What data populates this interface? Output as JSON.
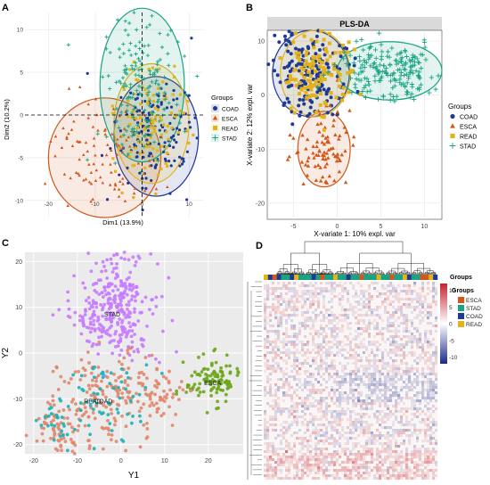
{
  "colors": {
    "COAD": "#1f3a93",
    "ESCA": "#d0581a",
    "READ": "#e3b31a",
    "STAD": "#1aa383",
    "tsne_purple": "#c77cff",
    "tsne_orange": "#e0876e",
    "tsne_green": "#6ca61a",
    "tsne_teal": "#1ab3b8",
    "heat_low": "#1b2a8c",
    "heat_mid": "#ffffff",
    "heat_high": "#c6242a"
  },
  "chart_data": [
    {
      "panel": "A",
      "type": "scatter",
      "xlabel": "Dim1 (13.9%)",
      "ylabel": "Dim2 (10.2%)",
      "xticks": [
        -20,
        -10,
        0,
        10
      ],
      "yticks": [
        10,
        5,
        0,
        -5,
        -10
      ],
      "xlim": [
        -25,
        13
      ],
      "ylim": [
        -12,
        12
      ],
      "grid": true,
      "legend": {
        "title": "Groups",
        "position": "right",
        "entries": [
          "COAD",
          "ESCA",
          "READ",
          "STAD"
        ]
      },
      "series": [
        {
          "name": "COAD",
          "center": [
            3,
            -2.5
          ],
          "spread": [
            4.5,
            3.5
          ],
          "count": 150
        },
        {
          "name": "ESCA",
          "center": [
            -8,
            -5
          ],
          "spread": [
            6,
            3.5
          ],
          "count": 110
        },
        {
          "name": "READ",
          "center": [
            2,
            -1
          ],
          "spread": [
            4,
            3.5
          ],
          "count": 110
        },
        {
          "name": "STAD",
          "center": [
            0,
            3.5
          ],
          "spread": [
            4.5,
            4.5
          ],
          "count": 170
        }
      ]
    },
    {
      "panel": "B",
      "type": "scatter",
      "title": "PLS-DA",
      "xlabel": "X-variate 1: 10% expl. var",
      "ylabel": "X-variate 2: 12% expl. var",
      "xticks": [
        -5,
        0,
        5,
        10
      ],
      "yticks": [
        10,
        0,
        -10,
        -20
      ],
      "xlim": [
        -8,
        12
      ],
      "ylim": [
        -23,
        12
      ],
      "grid": true,
      "legend": {
        "title": "Groups",
        "position": "right",
        "entries": [
          "COAD",
          "ESCA",
          "READ",
          "STAD"
        ]
      },
      "series": [
        {
          "name": "COAD",
          "center": [
            -3,
            4
          ],
          "spread": [
            2.2,
            4
          ],
          "count": 180
        },
        {
          "name": "ESCA",
          "center": [
            -1.5,
            -10
          ],
          "spread": [
            1.5,
            3.5
          ],
          "count": 90
        },
        {
          "name": "READ",
          "center": [
            -2.5,
            4
          ],
          "spread": [
            2,
            4
          ],
          "count": 130
        },
        {
          "name": "STAD",
          "center": [
            6,
            4.5
          ],
          "spread": [
            3,
            2.7
          ],
          "count": 200
        }
      ]
    },
    {
      "panel": "C",
      "type": "scatter",
      "xlabel": "Y1",
      "ylabel": "Y2",
      "xticks": [
        -20,
        -10,
        0,
        10,
        20
      ],
      "yticks": [
        20,
        10,
        0,
        -10,
        -20
      ],
      "xlim": [
        -22,
        28
      ],
      "ylim": [
        -22,
        22
      ],
      "grid": true,
      "cluster_labels": [
        {
          "label": "STAD",
          "x": -2,
          "y": 8
        },
        {
          "label": "ESCA",
          "x": 21,
          "y": -7
        },
        {
          "label": "READ",
          "x": -6.5,
          "y": -11
        },
        {
          "label": "COAD",
          "x": -4,
          "y": -11
        }
      ]
    },
    {
      "panel": "D",
      "type": "heatmap",
      "legend": {
        "scale_title": "Groups",
        "scale_ticks": [
          10,
          5,
          0,
          -5,
          -10
        ],
        "scale_range": [
          -12,
          12
        ],
        "group_title": "Groups",
        "group_entries": [
          "ESCA",
          "STAD",
          "COAD",
          "READ"
        ]
      }
    }
  ],
  "panel_letters": [
    "A",
    "B",
    "C",
    "D"
  ]
}
